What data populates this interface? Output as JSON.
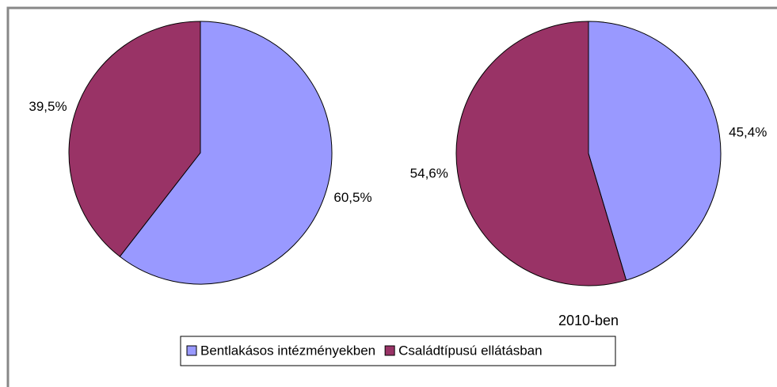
{
  "chart_data": [
    {
      "type": "pie",
      "values": [
        60.5,
        39.5
      ],
      "value_labels": [
        "60,5%",
        "39,5%"
      ]
    },
    {
      "type": "pie",
      "title": "2010-ben",
      "values": [
        45.4,
        54.6
      ],
      "value_labels": [
        "45,4%",
        "54,6%"
      ]
    }
  ],
  "legend": {
    "categories": [
      "Bentlakásos intézményekben",
      "Családtípusú ellátásban"
    ],
    "colors": [
      "#9999ff",
      "#993366"
    ]
  }
}
